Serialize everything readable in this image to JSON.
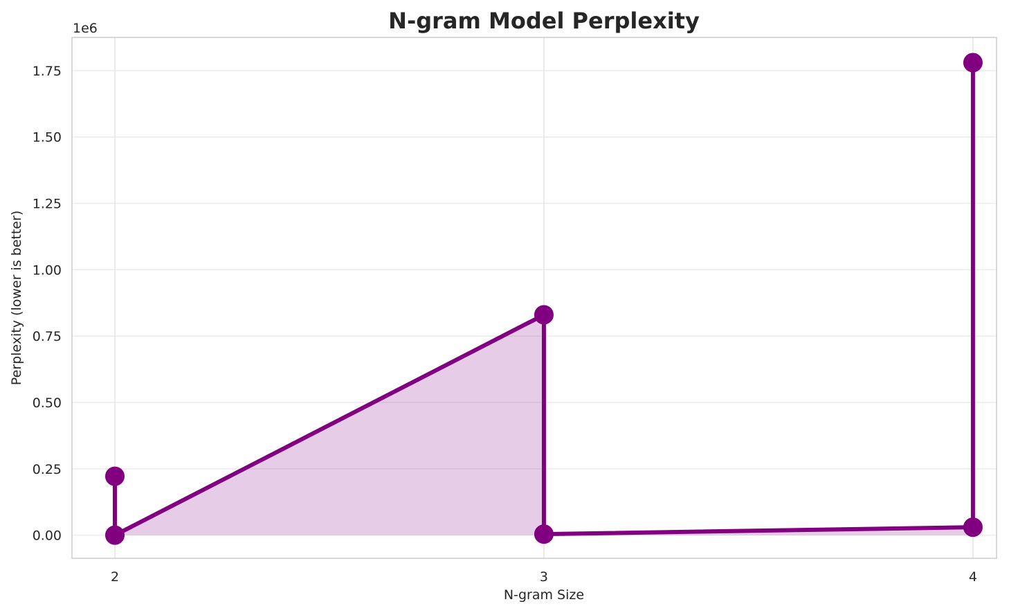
{
  "chart_data": {
    "type": "line",
    "title": "N-gram Model Perplexity",
    "xlabel": "N-gram Size",
    "ylabel": "Perplexity (lower is better)",
    "y_offset_label": "1e6",
    "x_ticks": [
      2,
      3,
      4
    ],
    "x_tick_labels": [
      "2",
      "3",
      "4"
    ],
    "y_ticks": [
      0,
      0.25,
      0.5,
      0.75,
      1.0,
      1.25,
      1.5,
      1.75
    ],
    "y_tick_labels": [
      "0.00",
      "0.25",
      "0.50",
      "0.75",
      "1.00",
      "1.25",
      "1.50",
      "1.75"
    ],
    "xlim": [
      1.9,
      4.055
    ],
    "ylim": [
      -0.087,
      1.875
    ],
    "y_scale_note": "values in units of 1e6",
    "grid": true,
    "series": [
      {
        "points": [
          {
            "x": 2,
            "y": 0.222
          },
          {
            "x": 2,
            "y": 0.0
          },
          {
            "x": 3,
            "y": 0.83
          },
          {
            "x": 3,
            "y": 0.004
          },
          {
            "x": 4,
            "y": 0.03
          },
          {
            "x": 4,
            "y": 1.78
          }
        ],
        "color": "#800080",
        "fill_color": "#800080",
        "fill_opacity": 0.2
      }
    ]
  }
}
